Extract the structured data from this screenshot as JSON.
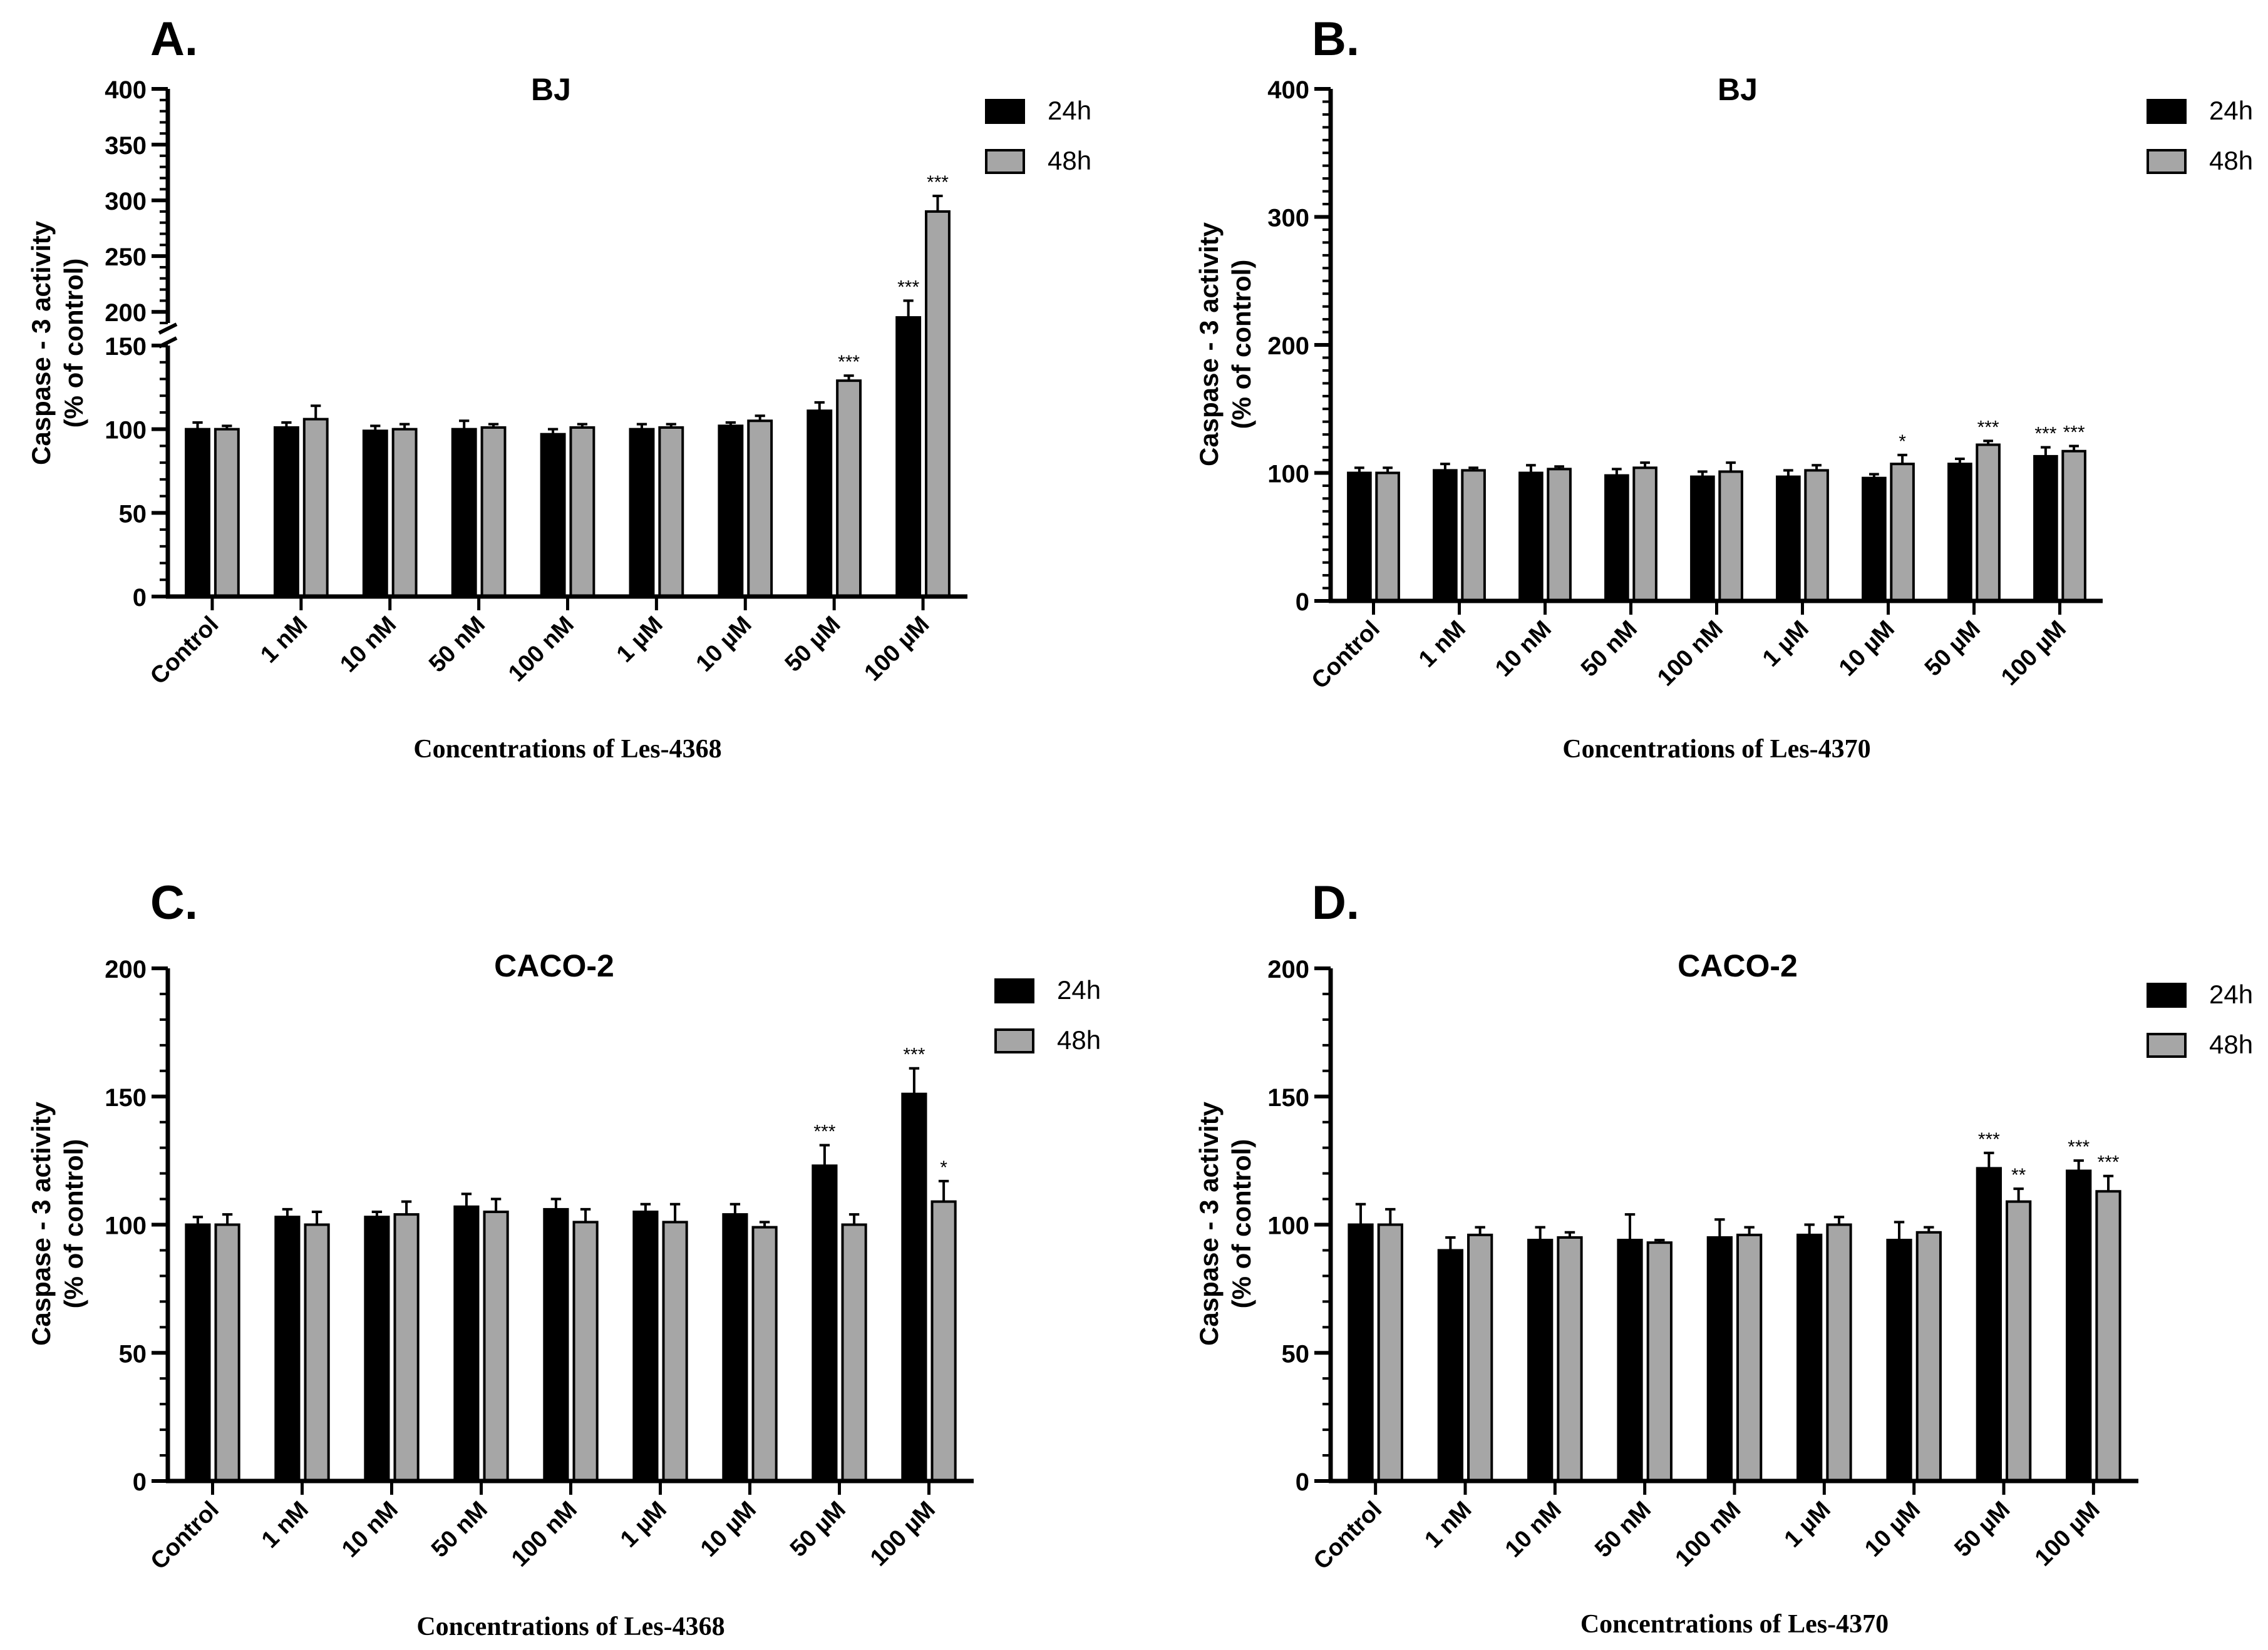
{
  "colors": {
    "h24": "#000000",
    "h48": "#a6a6a6",
    "axis": "#000000"
  },
  "chart_data": [
    {
      "panel_label": "A.",
      "type": "bar",
      "title": "BJ",
      "xlabel": "Concentrations of Les-4368",
      "ylabel_line1": "Caspase - 3 activity",
      "ylabel_line2": "(% of control)",
      "categories": [
        "Control",
        "1 nM",
        "10 nM",
        "50 nM",
        "100 nM",
        "1 µM",
        "10 µM",
        "50 µM",
        "100 µM"
      ],
      "series": [
        {
          "name": "24h",
          "values": [
            100,
            101,
            99,
            100,
            97,
            100,
            102,
            111,
            195
          ],
          "errors": [
            4,
            3,
            3,
            5,
            3,
            3,
            2,
            5,
            15
          ],
          "sig": [
            "",
            "",
            "",
            "",
            "",
            "",
            "",
            "",
            "***"
          ]
        },
        {
          "name": "48h",
          "values": [
            100,
            106,
            100,
            101,
            101,
            101,
            105,
            129,
            290
          ],
          "errors": [
            2,
            8,
            3,
            2,
            2,
            2,
            3,
            3,
            14
          ],
          "sig": [
            "",
            "",
            "",
            "",
            "",
            "",
            "",
            "***",
            "***"
          ]
        }
      ],
      "ylim": [
        0,
        400
      ],
      "axis_break": [
        150,
        190
      ],
      "yticks": [
        0,
        50,
        100,
        150,
        200,
        250,
        300,
        350,
        400
      ],
      "legend_position": "top-right"
    },
    {
      "panel_label": "B.",
      "type": "bar",
      "title": "BJ",
      "xlabel": "Concentrations of Les-4370",
      "ylabel_line1": "Caspase - 3 activity",
      "ylabel_line2": "(% of control)",
      "categories": [
        "Control",
        "1 nM",
        "10 nM",
        "50 nM",
        "100 nM",
        "1 µM",
        "10 µM",
        "50 µM",
        "100 µM"
      ],
      "series": [
        {
          "name": "24h",
          "values": [
            100,
            102,
            100,
            98,
            97,
            97,
            96,
            107,
            113
          ],
          "errors": [
            4,
            5,
            6,
            5,
            4,
            5,
            3,
            4,
            7
          ],
          "sig": [
            "",
            "",
            "",
            "",
            "",
            "",
            "",
            "",
            "***"
          ]
        },
        {
          "name": "48h",
          "values": [
            100,
            102,
            103,
            104,
            101,
            102,
            107,
            122,
            117
          ],
          "errors": [
            4,
            2,
            2,
            4,
            7,
            4,
            7,
            3,
            4
          ],
          "sig": [
            "",
            "",
            "",
            "",
            "",
            "",
            "*",
            "***",
            "***"
          ]
        }
      ],
      "ylim": [
        0,
        400
      ],
      "yticks": [
        0,
        100,
        200,
        300,
        400
      ],
      "legend_position": "top-right"
    },
    {
      "panel_label": "C.",
      "type": "bar",
      "title": "CACO-2",
      "xlabel": "Concentrations of Les-4368",
      "ylabel_line1": "Caspase - 3 activity",
      "ylabel_line2": "(% of control)",
      "categories": [
        "Control",
        "1 nM",
        "10 nM",
        "50 nM",
        "100 nM",
        "1 µM",
        "10 µM",
        "50 µM",
        "100 µM"
      ],
      "series": [
        {
          "name": "24h",
          "values": [
            100,
            103,
            103,
            107,
            106,
            105,
            104,
            123,
            151
          ],
          "errors": [
            3,
            3,
            2,
            5,
            4,
            3,
            4,
            8,
            10
          ],
          "sig": [
            "",
            "",
            "",
            "",
            "",
            "",
            "",
            "***",
            "***"
          ]
        },
        {
          "name": "48h",
          "values": [
            100,
            100,
            104,
            105,
            101,
            101,
            99,
            100,
            109
          ],
          "errors": [
            4,
            5,
            5,
            5,
            5,
            7,
            2,
            4,
            8
          ],
          "sig": [
            "",
            "",
            "",
            "",
            "",
            "",
            "",
            "",
            "*"
          ]
        }
      ],
      "ylim": [
        0,
        200
      ],
      "yticks": [
        0,
        50,
        100,
        150,
        200
      ],
      "legend_position": "top-right"
    },
    {
      "panel_label": "D.",
      "type": "bar",
      "title": "CACO-2",
      "xlabel": "Concentrations of Les-4370",
      "ylabel_line1": "Caspase - 3 activity",
      "ylabel_line2": "(% of control)",
      "categories": [
        "Control",
        "1 nM",
        "10 nM",
        "50 nM",
        "100 nM",
        "1 µM",
        "10 µM",
        "50 µM",
        "100 µM"
      ],
      "series": [
        {
          "name": "24h",
          "values": [
            100,
            90,
            94,
            94,
            95,
            96,
            94,
            122,
            121
          ],
          "errors": [
            8,
            5,
            5,
            10,
            7,
            4,
            7,
            6,
            4
          ],
          "sig": [
            "",
            "",
            "",
            "",
            "",
            "",
            "",
            "***",
            "***"
          ]
        },
        {
          "name": "48h",
          "values": [
            100,
            96,
            95,
            93,
            96,
            100,
            97,
            109,
            113
          ],
          "errors": [
            6,
            3,
            2,
            1,
            3,
            3,
            2,
            5,
            6
          ],
          "sig": [
            "",
            "",
            "",
            "",
            "",
            "",
            "",
            "**",
            "***"
          ]
        }
      ],
      "ylim": [
        0,
        200
      ],
      "yticks": [
        0,
        50,
        100,
        150,
        200
      ],
      "legend_position": "top-right"
    }
  ]
}
